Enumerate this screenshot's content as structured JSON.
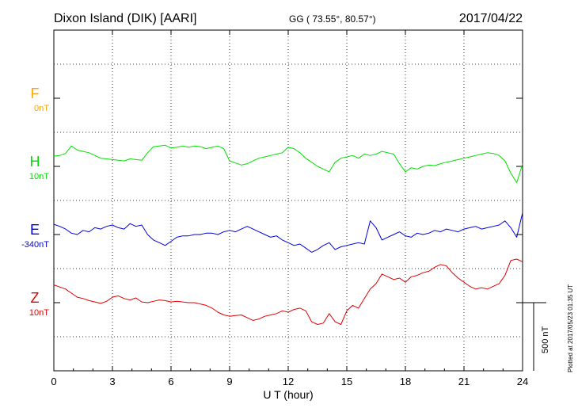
{
  "header": {
    "station": "Dixon Island (DIK)  [AARI]",
    "coords": "GG ( 73.55°,  80.57°)",
    "date": "2017/04/22"
  },
  "footer": {
    "plotted_note": "Plotted at 2017/05/23 01:35 UT",
    "scale_label": "500 nT"
  },
  "chart_data": {
    "type": "line",
    "title": "Dixon Island (DIK)  [AARI]",
    "xlabel": "U T (hour)",
    "ylabel": "",
    "xlim": [
      0,
      24
    ],
    "x_ticks": [
      "0",
      "3",
      "6",
      "9",
      "12",
      "15",
      "18",
      "21",
      "24"
    ],
    "grid": true,
    "scale_bar_nT": 500,
    "series": [
      {
        "name": "F",
        "offset_label": "0nT",
        "color": "#ffa500",
        "x": [],
        "y": []
      },
      {
        "name": "H",
        "offset_label": "10nT",
        "color": "#00e000",
        "x": [
          0,
          0.3,
          0.6,
          0.9,
          1.2,
          1.5,
          1.8,
          2.1,
          2.4,
          2.7,
          3.0,
          3.3,
          3.6,
          3.9,
          4.2,
          4.5,
          4.8,
          5.1,
          5.4,
          5.7,
          6.0,
          6.3,
          6.6,
          6.9,
          7.2,
          7.5,
          7.8,
          8.1,
          8.4,
          8.7,
          9.0,
          9.3,
          9.6,
          9.9,
          10.2,
          10.5,
          10.8,
          11.1,
          11.4,
          11.7,
          12.0,
          12.3,
          12.6,
          12.9,
          13.2,
          13.5,
          13.8,
          14.1,
          14.4,
          14.7,
          15.0,
          15.3,
          15.6,
          15.9,
          16.2,
          16.5,
          16.8,
          17.1,
          17.4,
          17.7,
          18.0,
          18.3,
          18.6,
          18.9,
          19.2,
          19.5,
          19.8,
          20.1,
          20.4,
          20.7,
          21.0,
          21.3,
          21.6,
          21.9,
          22.2,
          22.5,
          22.8,
          23.1,
          23.4,
          23.7,
          24.0
        ],
        "y": [
          75,
          80,
          95,
          150,
          120,
          110,
          100,
          80,
          60,
          55,
          50,
          45,
          40,
          55,
          50,
          45,
          100,
          145,
          150,
          155,
          135,
          140,
          150,
          140,
          150,
          145,
          130,
          140,
          150,
          130,
          40,
          25,
          10,
          20,
          40,
          60,
          70,
          80,
          90,
          100,
          140,
          130,
          100,
          60,
          30,
          0,
          -20,
          -40,
          30,
          60,
          70,
          80,
          60,
          90,
          80,
          90,
          110,
          100,
          90,
          20,
          -40,
          -10,
          -20,
          0,
          10,
          5,
          20,
          30,
          40,
          50,
          60,
          70,
          80,
          90,
          100,
          95,
          80,
          40,
          -50,
          -120,
          20
        ]
      },
      {
        "name": "E",
        "offset_label": "-340nT",
        "color": "#0000e0",
        "x": [
          0,
          0.3,
          0.6,
          0.9,
          1.2,
          1.5,
          1.8,
          2.1,
          2.4,
          2.7,
          3.0,
          3.3,
          3.6,
          3.9,
          4.2,
          4.5,
          4.8,
          5.1,
          5.4,
          5.7,
          6.0,
          6.3,
          6.6,
          6.9,
          7.2,
          7.5,
          7.8,
          8.1,
          8.4,
          8.7,
          9.0,
          9.3,
          9.6,
          9.9,
          10.2,
          10.5,
          10.8,
          11.1,
          11.4,
          11.7,
          12.0,
          12.3,
          12.6,
          12.9,
          13.2,
          13.5,
          13.8,
          14.1,
          14.4,
          14.7,
          15.0,
          15.3,
          15.6,
          15.9,
          16.2,
          16.5,
          16.8,
          17.1,
          17.4,
          17.7,
          18.0,
          18.3,
          18.6,
          18.9,
          19.2,
          19.5,
          19.8,
          20.1,
          20.4,
          20.7,
          21.0,
          21.3,
          21.6,
          21.9,
          22.2,
          22.5,
          22.8,
          23.1,
          23.4,
          23.7,
          24.0
        ],
        "y": [
          75,
          60,
          40,
          10,
          0,
          30,
          20,
          50,
          40,
          60,
          70,
          50,
          40,
          80,
          60,
          70,
          0,
          -40,
          -60,
          -80,
          -50,
          -20,
          -10,
          -10,
          0,
          0,
          10,
          10,
          0,
          20,
          30,
          20,
          40,
          60,
          40,
          20,
          0,
          -20,
          -10,
          -40,
          -60,
          -80,
          -70,
          -100,
          -130,
          -110,
          -80,
          -60,
          -110,
          -90,
          -80,
          -70,
          -60,
          -70,
          100,
          50,
          -40,
          -20,
          0,
          20,
          -10,
          -20,
          10,
          0,
          10,
          30,
          20,
          40,
          30,
          20,
          40,
          50,
          60,
          40,
          50,
          60,
          70,
          100,
          50,
          -20,
          160
        ]
      },
      {
        "name": "Z",
        "offset_label": "10nT",
        "color": "#e00000",
        "x": [
          0,
          0.3,
          0.6,
          0.9,
          1.2,
          1.5,
          1.8,
          2.1,
          2.4,
          2.7,
          3.0,
          3.3,
          3.6,
          3.9,
          4.2,
          4.5,
          4.8,
          5.1,
          5.4,
          5.7,
          6.0,
          6.3,
          6.6,
          6.9,
          7.2,
          7.5,
          7.8,
          8.1,
          8.4,
          8.7,
          9.0,
          9.3,
          9.6,
          9.9,
          10.2,
          10.5,
          10.8,
          11.1,
          11.4,
          11.7,
          12.0,
          12.3,
          12.6,
          12.9,
          13.2,
          13.5,
          13.8,
          14.1,
          14.4,
          14.7,
          15.0,
          15.3,
          15.6,
          15.9,
          16.2,
          16.5,
          16.8,
          17.1,
          17.4,
          17.7,
          18.0,
          18.3,
          18.6,
          18.9,
          19.2,
          19.5,
          19.8,
          20.1,
          20.4,
          20.7,
          21.0,
          21.3,
          21.6,
          21.9,
          22.2,
          22.5,
          22.8,
          23.1,
          23.4,
          23.7,
          24.0
        ],
        "y": [
          130,
          115,
          100,
          70,
          40,
          30,
          15,
          5,
          -5,
          10,
          40,
          50,
          30,
          20,
          35,
          5,
          0,
          10,
          20,
          15,
          5,
          10,
          5,
          0,
          0,
          -10,
          -20,
          -40,
          -70,
          -90,
          -100,
          -95,
          -90,
          -110,
          -130,
          -120,
          -100,
          -90,
          -80,
          -60,
          -70,
          -50,
          -40,
          -60,
          -140,
          -160,
          -150,
          -80,
          -140,
          -160,
          -60,
          -20,
          -40,
          30,
          100,
          140,
          210,
          190,
          170,
          180,
          150,
          190,
          200,
          220,
          230,
          260,
          280,
          270,
          220,
          180,
          150,
          120,
          100,
          110,
          100,
          120,
          140,
          200,
          310,
          320,
          300
        ]
      }
    ]
  }
}
